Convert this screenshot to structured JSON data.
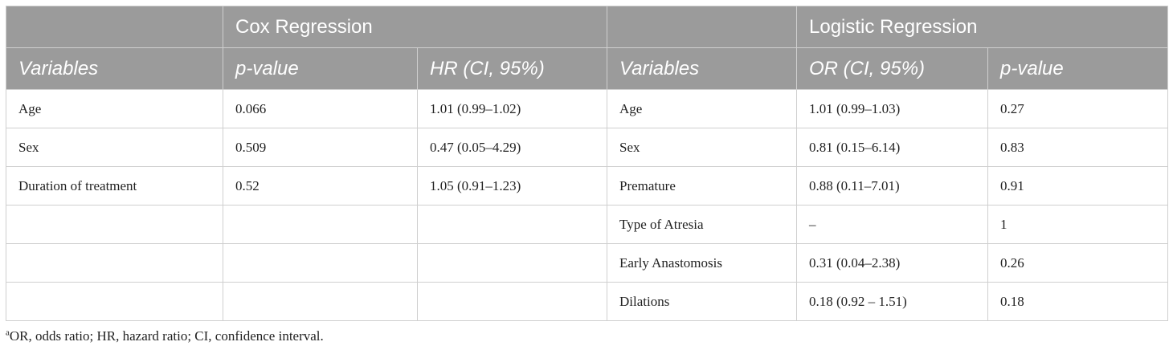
{
  "table": {
    "group_headers": {
      "left": "Cox Regression",
      "right": "Logistic Regression"
    },
    "column_headers": [
      "Variables",
      "p-value",
      "HR (CI, 95%)",
      "Variables",
      "OR (CI, 95%)",
      "p-value"
    ],
    "rows": [
      [
        "Age",
        "0.066",
        "1.01 (0.99–1.02)",
        "Age",
        "1.01 (0.99–1.03)",
        "0.27"
      ],
      [
        "Sex",
        "0.509",
        "0.47 (0.05–4.29)",
        "Sex",
        "0.81 (0.15–6.14)",
        "0.83"
      ],
      [
        "Duration of treatment",
        "0.52",
        "1.05 (0.91–1.23)",
        "Premature",
        "0.88 (0.11–7.01)",
        "0.91"
      ],
      [
        "",
        "",
        "",
        "Type of Atresia",
        "–",
        "1"
      ],
      [
        "",
        "",
        "",
        "Early Anastomosis",
        "0.31 (0.04–2.38)",
        "0.26"
      ],
      [
        "",
        "",
        "",
        "Dilations",
        "0.18 (0.92 – 1.51)",
        "0.18"
      ]
    ]
  },
  "footnote": {
    "marker": "a",
    "text": "OR, odds ratio; HR, hazard ratio; CI, confidence interval."
  }
}
